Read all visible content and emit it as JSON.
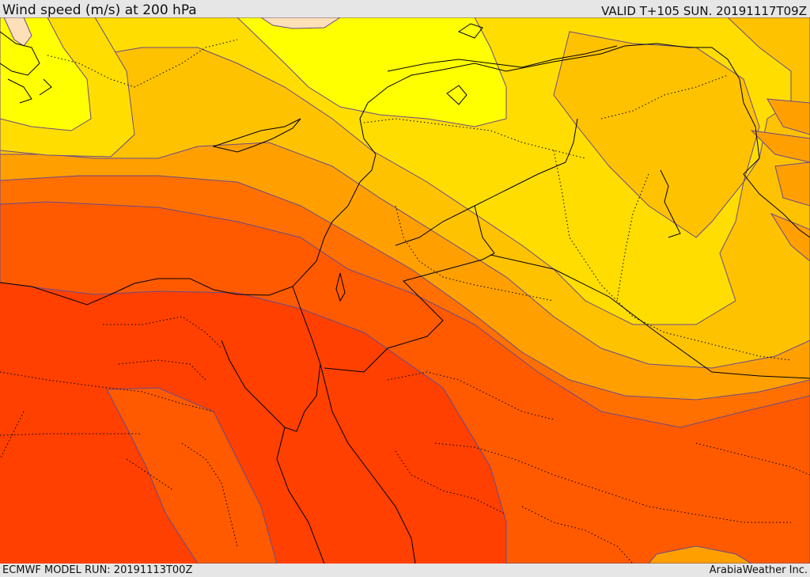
{
  "header": {
    "title": "Wind speed (m/s) at 200 hPa",
    "valid_time": "VALID T+105 SUN. 20191117T09Z"
  },
  "footer": {
    "model_run": "ECMWF MODEL RUN: 20191113T00Z",
    "credit": "ArabiaWeather Inc."
  },
  "map": {
    "field": "Wind speed at 200 hPa",
    "units": "m/s",
    "band_colors": [
      "#fde0b8",
      "#ffff00",
      "#ffdd00",
      "#ffc200",
      "#ffa000",
      "#ff7000",
      "#ff5a00",
      "#ff4000"
    ],
    "contour_color": "#5a4a70",
    "coast_color": "#000000",
    "border_style": "dotted"
  }
}
